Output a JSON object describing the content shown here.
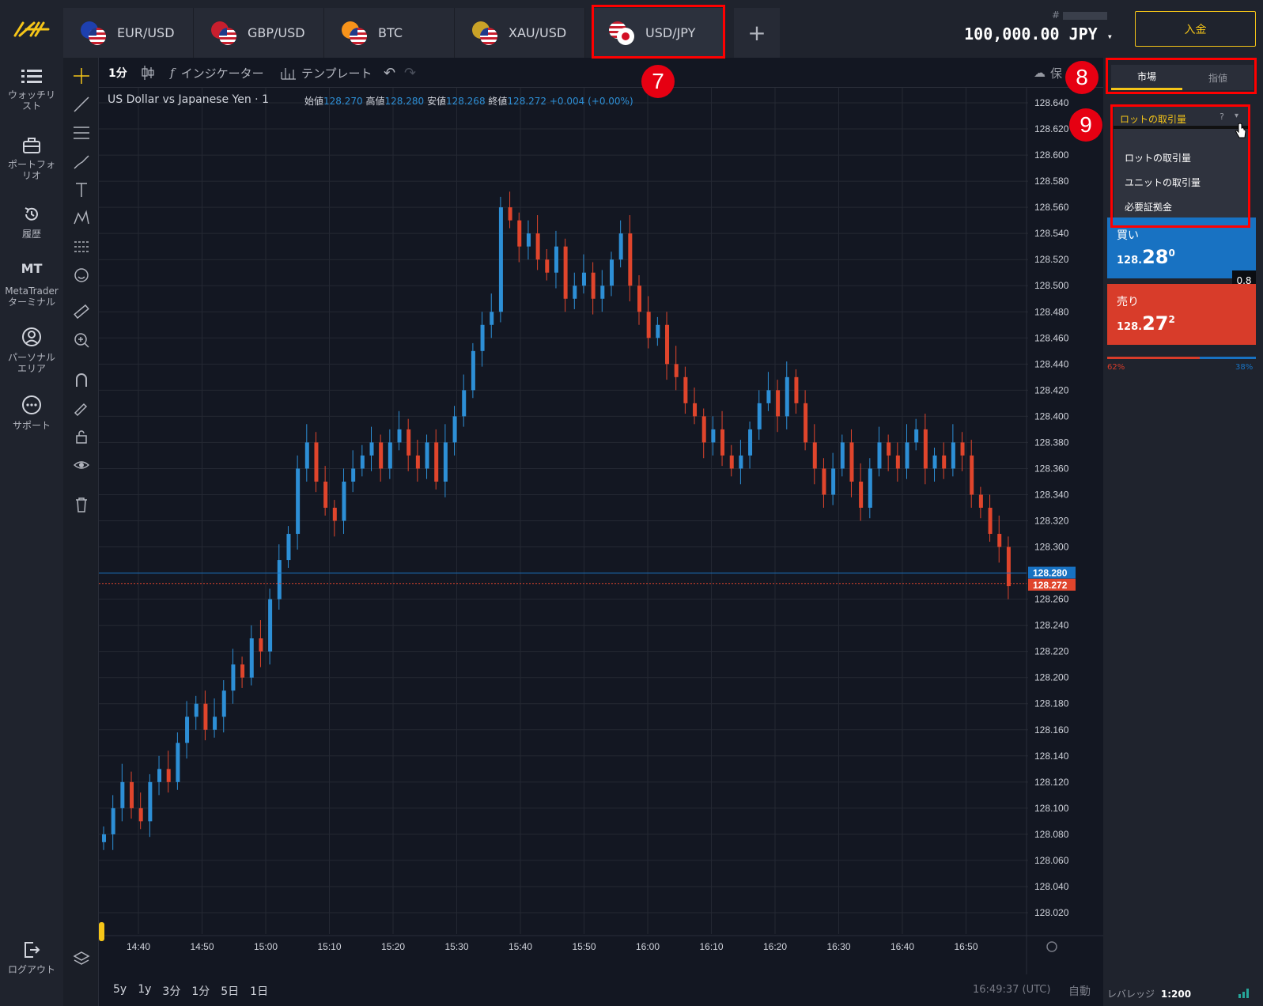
{
  "tabs": [
    {
      "label": "EUR/USD",
      "base": "#1e40af"
    },
    {
      "label": "GBP/USD",
      "base": "#c81f2e"
    },
    {
      "label": "BTC",
      "base": "#f7931a"
    },
    {
      "label": "XAU/USD",
      "base": "#c9a227"
    },
    {
      "label": "USD/JPY",
      "base": "#c81f2e",
      "active": true
    }
  ],
  "header": {
    "account_prefix": "#",
    "balance": "100,000.00 JPY",
    "deposit_label": "入金"
  },
  "nav": {
    "watchlist": "ウォッチリスト",
    "portfolio": "ポートフォリオ",
    "history": "履歴",
    "mt_badge": "MT",
    "metatrader": "MetaTraderターミナル",
    "personal": "パーソナルエリア",
    "support": "サポート",
    "logout": "ログアウト"
  },
  "chart_toolbar": {
    "interval": "1分",
    "indicators": "インジケーター",
    "templates": "テンプレート",
    "save_partial": "保"
  },
  "legend": {
    "title": "US Dollar vs Japanese Yen · 1",
    "open_label": "始値",
    "open": "128.270",
    "high_label": "高値",
    "high": "128.280",
    "low_label": "安値",
    "low": "128.268",
    "close_label": "終値",
    "close": "128.272",
    "change": "+0.004 (+0.00%)"
  },
  "bottom": {
    "ranges": [
      "5y",
      "1y",
      "3分",
      "1分",
      "5日",
      "1日"
    ],
    "clock": "16:49:37 (UTC)",
    "auto": "自動",
    "leverage_label": "レバレッジ",
    "leverage_value": "1:200"
  },
  "order": {
    "tab_market": "市場",
    "tab_pending": "指値",
    "dropdown_selected": "ロットの取引量",
    "dropdown_options": [
      "ロットの取引量",
      "ユニットの取引量",
      "必要証拠金"
    ],
    "buy_label": "買い",
    "buy_small": "128.",
    "buy_big": "28",
    "buy_sup": "0",
    "sell_label": "売り",
    "sell_small": "128.",
    "sell_big": "27",
    "sell_sup": "2",
    "spread": "0.8",
    "sell_pct": "62%",
    "buy_pct": "38%"
  },
  "annotations": {
    "n7": "7",
    "n8": "8",
    "n9": "9"
  },
  "colors": {
    "up": "#2d8fd6",
    "down": "#e0452c",
    "accent": "#f5c518",
    "annotation": "#ff0000"
  },
  "chart_data": {
    "type": "candlestick",
    "title": "US Dollar vs Japanese Yen · 1",
    "ylim": [
      128.0,
      128.65
    ],
    "y_ticks": [
      "128.640",
      "128.620",
      "128.600",
      "128.580",
      "128.560",
      "128.540",
      "128.520",
      "128.500",
      "128.480",
      "128.460",
      "128.440",
      "128.420",
      "128.400",
      "128.380",
      "128.360",
      "128.340",
      "128.320",
      "128.300",
      "128.280",
      "128.260",
      "128.240",
      "128.220",
      "128.200",
      "128.180",
      "128.160",
      "128.140",
      "128.120",
      "128.100",
      "128.080",
      "128.060",
      "128.040",
      "128.020"
    ],
    "x_ticks": [
      "14:40",
      "14:50",
      "15:00",
      "15:10",
      "15:20",
      "15:30",
      "15:40",
      "15:50",
      "16:00",
      "16:10",
      "16:20",
      "16:30",
      "16:40",
      "16:50"
    ],
    "ask_price": "128.280",
    "bid_price": "128.272",
    "close_path": [
      128.08,
      128.1,
      128.12,
      128.1,
      128.09,
      128.12,
      128.13,
      128.12,
      128.15,
      128.17,
      128.18,
      128.16,
      128.17,
      128.19,
      128.21,
      128.2,
      128.23,
      128.22,
      128.26,
      128.29,
      128.31,
      128.36,
      128.38,
      128.35,
      128.33,
      128.32,
      128.35,
      128.36,
      128.37,
      128.38,
      128.36,
      128.38,
      128.39,
      128.37,
      128.36,
      128.38,
      128.35,
      128.38,
      128.4,
      128.42,
      128.45,
      128.47,
      128.48,
      128.56,
      128.55,
      128.53,
      128.54,
      128.52,
      128.51,
      128.53,
      128.49,
      128.5,
      128.51,
      128.49,
      128.5,
      128.52,
      128.54,
      128.5,
      128.48,
      128.46,
      128.47,
      128.44,
      128.43,
      128.41,
      128.4,
      128.38,
      128.39,
      128.37,
      128.36,
      128.37,
      128.39,
      128.41,
      128.42,
      128.4,
      128.43,
      128.41,
      128.38,
      128.36,
      128.34,
      128.36,
      128.38,
      128.35,
      128.33,
      128.36,
      128.38,
      128.37,
      128.36,
      128.38,
      128.39,
      128.36,
      128.37,
      128.36,
      128.38,
      128.37,
      128.34,
      128.33,
      128.31,
      128.3,
      128.27
    ]
  }
}
